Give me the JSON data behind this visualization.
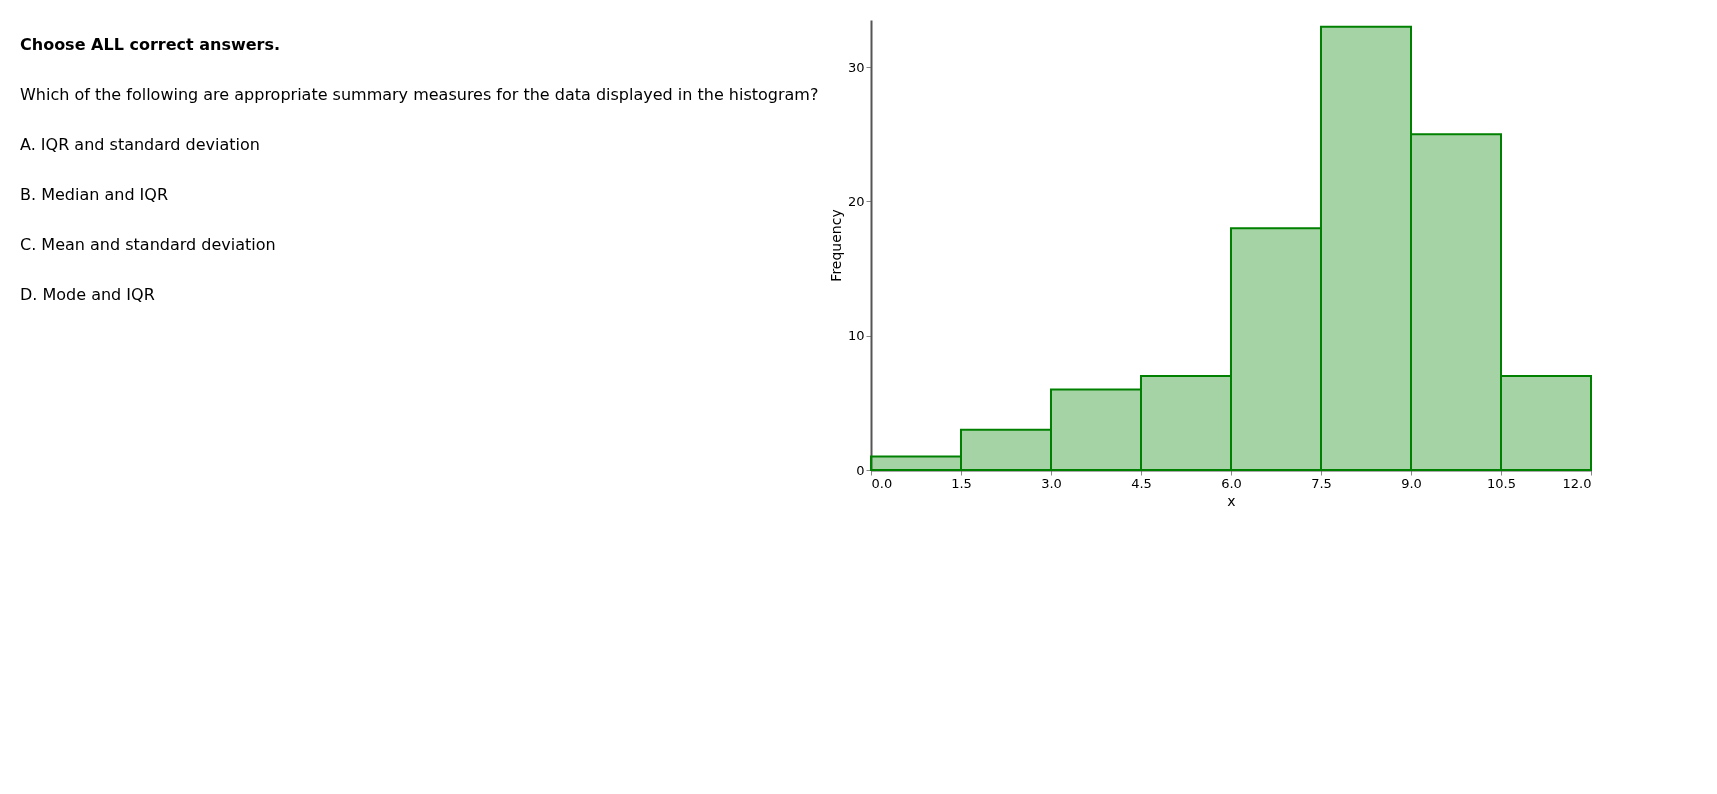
{
  "chart_data": {
    "type": "histogram",
    "annotations": [
      "Choose ALL correct answers.",
      "Which of the following are appropriate summary measures for the data displayed in the histogram?",
      "A. IQR and standard deviation",
      "B. Median and IQR",
      "C. Mean and standard deviation",
      "D. Mode and IQR"
    ],
    "xlabel": "x",
    "ylabel": "Frequency",
    "bins": [
      0,
      1.5,
      3,
      4.5,
      6,
      7.5,
      9,
      10.5,
      12
    ],
    "values": [
      1,
      3,
      6,
      7,
      18,
      33,
      25,
      7
    ],
    "color": "#008000",
    "xlim": [
      0,
      12
    ],
    "xticks": [
      {
        "value": 0,
        "label": "0.0"
      },
      1.5,
      {
        "value": 3,
        "label": "3.0"
      },
      4.5,
      {
        "value": 6,
        "label": "6.0"
      },
      7.5,
      {
        "value": 9,
        "label": "9.0"
      },
      10.5,
      {
        "value": 12,
        "label": "12.0"
      }
    ],
    "ylim": [
      0,
      33.5
    ],
    "yticks": [
      0,
      10,
      20,
      30
    ],
    "grid": false
  }
}
